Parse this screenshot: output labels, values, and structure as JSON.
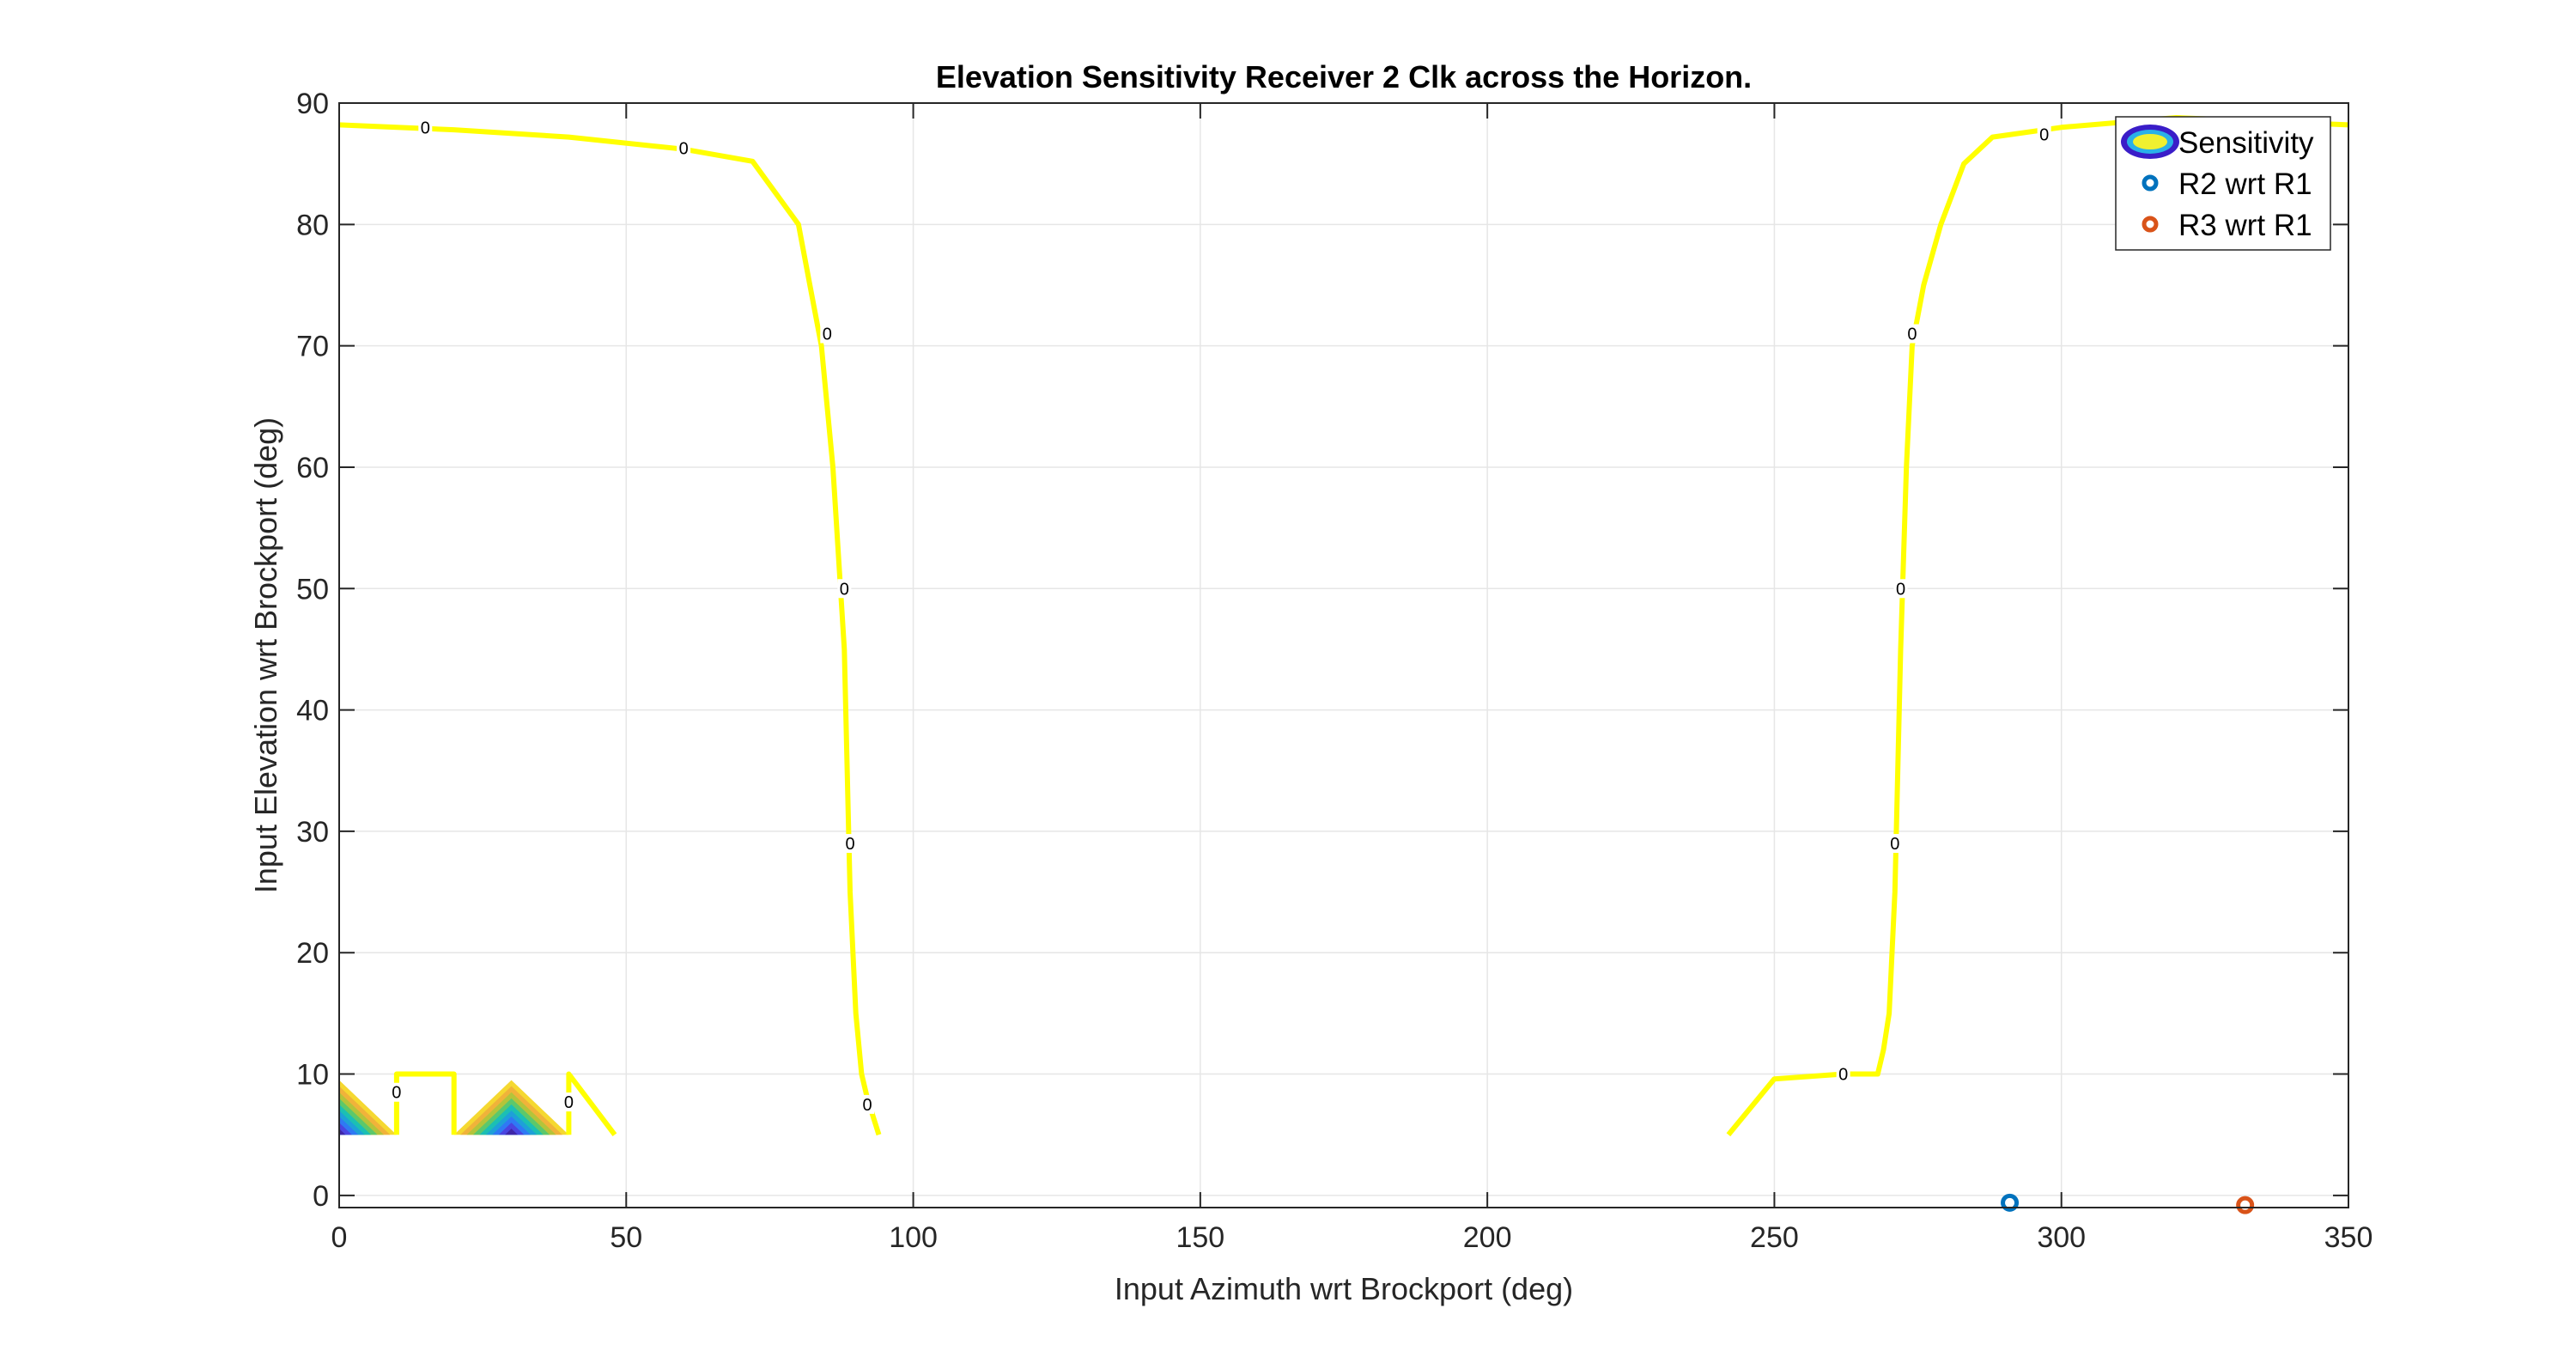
{
  "chart_data": {
    "type": "contour",
    "title": "Elevation Sensitivity Receiver 2 Clk across the Horizon.",
    "xlabel": "Input Azimuth wrt Brockport (deg)",
    "ylabel": "Input Elevation wrt Brockport (deg)",
    "xlim": [
      0,
      350
    ],
    "ylim": [
      -1,
      90
    ],
    "xticks": [
      0,
      50,
      100,
      150,
      200,
      250,
      300,
      350
    ],
    "yticks": [
      0,
      10,
      20,
      30,
      40,
      50,
      60,
      70,
      80,
      90
    ],
    "grid": true,
    "legend": {
      "location": "top-right",
      "entries": [
        "Sensitivity",
        "R2 wrt R1",
        "R3 wrt R1"
      ]
    },
    "colors": {
      "contour_zero": "#ffff00",
      "r2_marker": "#0072bd",
      "r3_marker": "#d95319",
      "axes": "#262626",
      "grid": "#e6e6e6",
      "legend_ring_outer": "#3a1dc8",
      "legend_ring_mid": "#2ab0e8",
      "legend_ring_inner": "#f0f030"
    },
    "contour_lines": [
      {
        "level": 0,
        "name": "left-zero-contour",
        "x": [
          0,
          20,
          40,
          60,
          72,
          80,
          82,
          84,
          86,
          88,
          89,
          90,
          91,
          92,
          94
        ],
        "y": [
          88.2,
          87.8,
          87.2,
          86.2,
          85.2,
          80,
          75,
          70,
          60,
          45,
          25,
          15,
          10,
          8,
          5
        ]
      },
      {
        "level": 0,
        "name": "right-zero-contour",
        "x": [
          242,
          250,
          262,
          268,
          269,
          270,
          271,
          272,
          273,
          274,
          276,
          279,
          283,
          288,
          300,
          320,
          350
        ],
        "y": [
          5,
          9.6,
          10,
          10,
          12,
          15,
          25,
          45,
          60,
          70,
          75,
          80,
          85,
          87.2,
          88,
          88.8,
          88.2
        ]
      },
      {
        "level": 0,
        "name": "bottom-left-zero-contour",
        "x": [
          10,
          10,
          20,
          20
        ],
        "y": [
          5,
          10,
          10,
          5
        ]
      },
      {
        "level": 0,
        "name": "bottom-left-diagonal-contour",
        "x": [
          40,
          40,
          48
        ],
        "y": [
          5,
          10,
          5
        ]
      }
    ],
    "contour_labels": [
      {
        "x": 15,
        "y": 88.0,
        "text": "0"
      },
      {
        "x": 60,
        "y": 86.3,
        "text": "0"
      },
      {
        "x": 85,
        "y": 71.0,
        "text": "0"
      },
      {
        "x": 88,
        "y": 50.0,
        "text": "0"
      },
      {
        "x": 89,
        "y": 29.0,
        "text": "0"
      },
      {
        "x": 92,
        "y": 7.5,
        "text": "0"
      },
      {
        "x": 10,
        "y": 8.5,
        "text": "0"
      },
      {
        "x": 40,
        "y": 7.7,
        "text": "0"
      },
      {
        "x": 262,
        "y": 10.0,
        "text": "0"
      },
      {
        "x": 271,
        "y": 29.0,
        "text": "0"
      },
      {
        "x": 272,
        "y": 50.0,
        "text": "0"
      },
      {
        "x": 274,
        "y": 71.0,
        "text": "0"
      },
      {
        "x": 297,
        "y": 87.4,
        "text": "0"
      }
    ],
    "filled_wedges": [
      {
        "name": "wedge-left",
        "x_range": [
          0,
          10
        ],
        "y_range": [
          5,
          9.5
        ],
        "shape": "left-triangle"
      },
      {
        "name": "wedge-center",
        "x_range": [
          20,
          40
        ],
        "y_range": [
          5,
          9.5
        ],
        "shape": "triangle"
      }
    ],
    "wedge_palette": [
      "#3e26a8",
      "#4a45e0",
      "#2f79f4",
      "#1ea0d8",
      "#1bbfb4",
      "#5cc86b",
      "#b4c43a",
      "#f0b33a",
      "#f5d831"
    ],
    "scatter_series": [
      {
        "name": "R2 wrt R1",
        "x": [
          291
        ],
        "y": [
          -0.6
        ]
      },
      {
        "name": "R3 wrt R1",
        "x": [
          332
        ],
        "y": [
          -0.8
        ]
      }
    ]
  }
}
